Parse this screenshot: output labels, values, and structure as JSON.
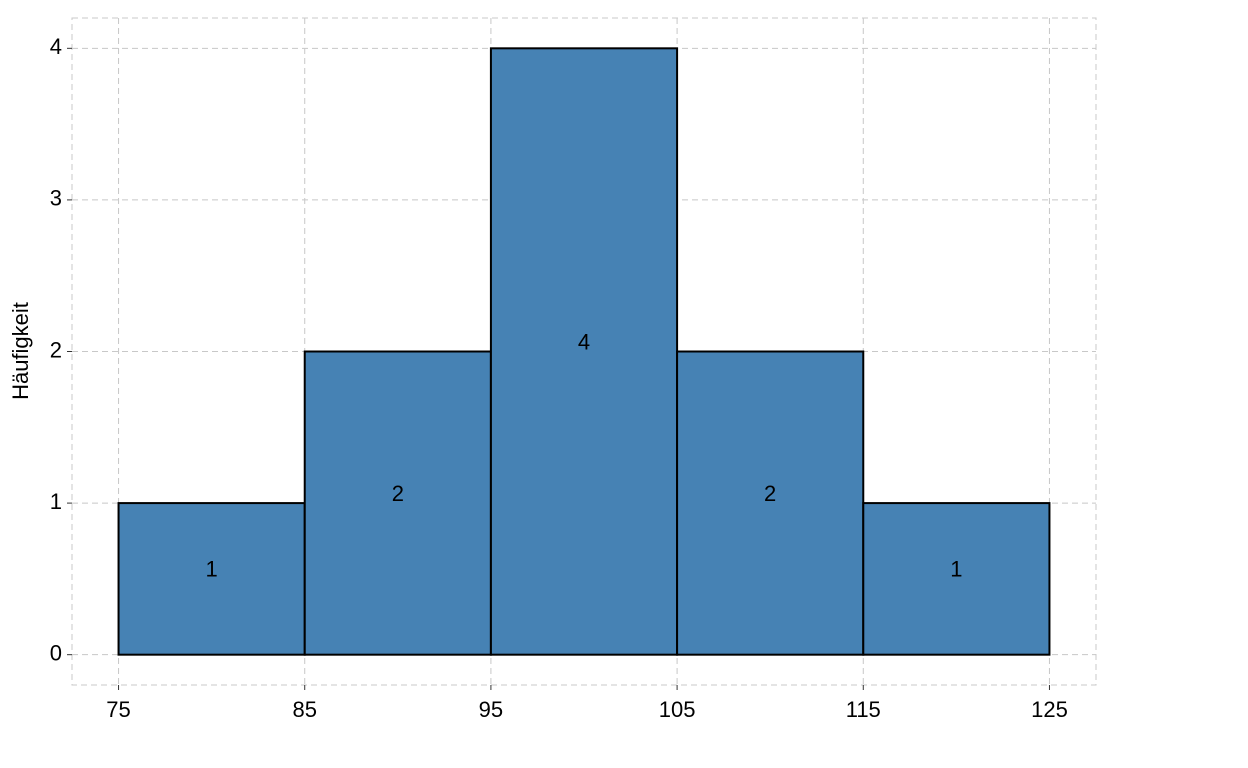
{
  "chart_data": {
    "type": "histogram",
    "y_label": "Häufigkeit",
    "bins": [
      75,
      85,
      95,
      105,
      115,
      125
    ],
    "values": [
      1,
      2,
      4,
      2,
      1
    ],
    "color": "#4682b4",
    "edgecolor": "#000000",
    "xlim": [
      72.5,
      127.5
    ],
    "ylim": [
      -0.2,
      4.2
    ],
    "xticks": [
      75,
      85,
      95,
      105,
      115,
      125
    ],
    "yticks": [
      0,
      1,
      2,
      3,
      4
    ],
    "grid": true,
    "value_labels_shown": true
  }
}
